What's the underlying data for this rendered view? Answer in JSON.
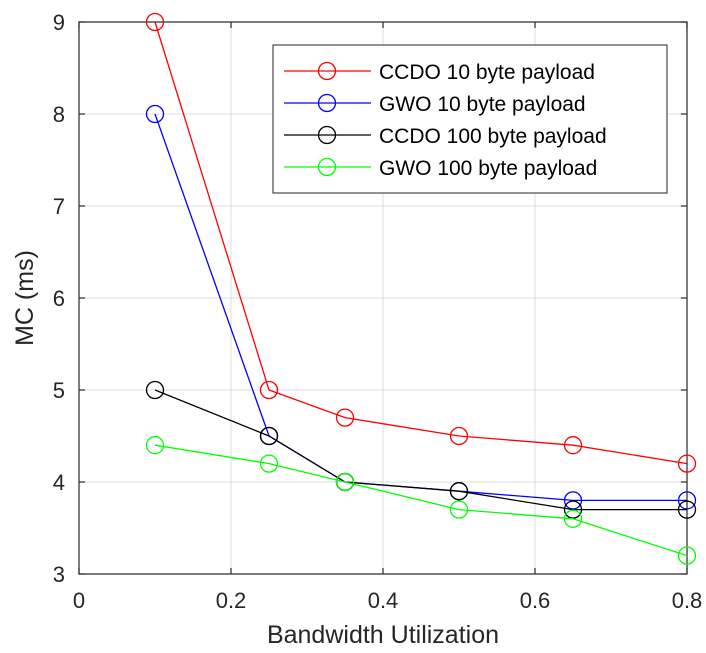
{
  "chart_data": {
    "type": "line",
    "title": "",
    "xlabel": "Bandwidth Utilization",
    "ylabel": "MC (ms)",
    "xlim": [
      0,
      0.8
    ],
    "ylim": [
      3,
      9
    ],
    "xticks": [
      0,
      0.2,
      0.4,
      0.6,
      0.8
    ],
    "xtick_labels": [
      "0",
      "0.2",
      "0.4",
      "0.6",
      "0.8"
    ],
    "yticks": [
      3,
      4,
      5,
      6,
      7,
      8,
      9
    ],
    "ytick_labels": [
      "3",
      "4",
      "5",
      "6",
      "7",
      "8",
      "9"
    ],
    "grid": true,
    "legend_position": "top-right",
    "x": [
      0.1,
      0.25,
      0.35,
      0.5,
      0.65,
      0.8
    ],
    "series": [
      {
        "name": "CCDO 10 byte payload",
        "color": "#ff0000",
        "marker": "circle",
        "values": [
          9.0,
          5.0,
          4.7,
          4.5,
          4.4,
          4.2
        ]
      },
      {
        "name": "GWO 10 byte payload",
        "color": "#0000ff",
        "marker": "circle",
        "values": [
          8.0,
          4.5,
          4.0,
          3.9,
          3.8,
          3.8
        ]
      },
      {
        "name": "CCDO 100 byte payload",
        "color": "#000000",
        "marker": "circle",
        "values": [
          5.0,
          4.5,
          4.0,
          3.9,
          3.7,
          3.7
        ]
      },
      {
        "name": "GWO 100 byte payload",
        "color": "#00ff00",
        "marker": "circle",
        "values": [
          4.4,
          4.2,
          4.0,
          3.7,
          3.6,
          3.2
        ]
      }
    ]
  }
}
